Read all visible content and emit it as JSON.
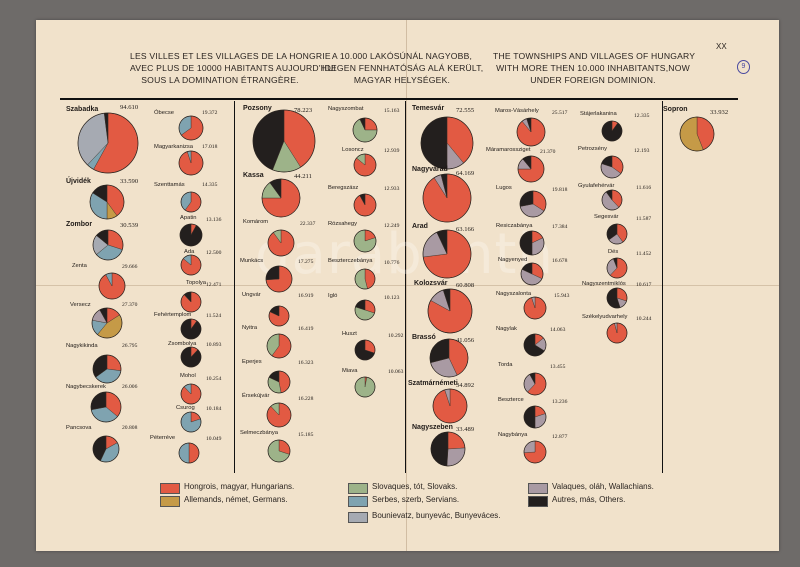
{
  "header": {
    "plate_no": "XX",
    "stamp": "9",
    "french": [
      "LES VILLES ET LES VILLAGES DE LA HONGRIE",
      "AVEC PLUS DE 10000 HABITANTS AUJOURD'HUI",
      "SOUS LA DOMINATION ÉTRANGÈRE."
    ],
    "hungarian": [
      "A 10.000 LAKÓSÚNÁL NAGYOBB,",
      "IDEGEN FENNHATÓSÁG ALÁ KERÜLT,",
      "MAGYAR HELYSÉGEK."
    ],
    "english": [
      "THE TOWNSHIPS AND VILLAGES OF HUNGARY",
      "WITH MORE THEN 10.000 INHABITANTS,NOW",
      "UNDER FOREIGN DOMINION."
    ]
  },
  "watermark": "darabanth",
  "colors": {
    "hun": "#e25a43",
    "ger": "#c59a47",
    "slo": "#9db389",
    "srb": "#7fa3b0",
    "bun": "#a6aab2",
    "val": "#a99aa3",
    "oth": "#231f1e"
  },
  "legend": [
    {
      "key": "hun",
      "label": "Hongrois, magyar, Hungarians."
    },
    {
      "key": "ger",
      "label": "Allemands, német, Germans."
    },
    {
      "key": "slo",
      "label": "Slovaques, tót, Slovaks."
    },
    {
      "key": "srb",
      "label": "Serbes, szerb, Servians."
    },
    {
      "key": "bun",
      "label": "Bounievatz, bunyevác, Bunyevác­es."
    },
    {
      "key": "val",
      "label": "Valaques, oláh, Wallachians."
    },
    {
      "key": "oth",
      "label": "Autres, más, Others."
    }
  ],
  "towns": [
    {
      "name": "Szabadka",
      "pop": "94.610",
      "parts": {
        "hun": 58,
        "bun": 36,
        "srb": 4,
        "oth": 2
      }
    },
    {
      "name": "Újvidék",
      "pop": "33.590",
      "parts": {
        "hun": 40,
        "srb": 34,
        "ger": 10,
        "oth": 16
      }
    },
    {
      "name": "Zombor",
      "pop": "30.539",
      "parts": {
        "hun": 30,
        "srb": 34,
        "bun": 22,
        "oth": 14
      }
    },
    {
      "name": "Zenta",
      "pop": "29.666",
      "parts": {
        "hun": 92,
        "srb": 8
      }
    },
    {
      "name": "Versecz",
      "pop": "27.370",
      "parts": {
        "hun": 16,
        "ger": 45,
        "srb": 17,
        "val": 14,
        "oth": 8
      }
    },
    {
      "name": "Nagykikinda",
      "pop": "26.795",
      "parts": {
        "hun": 27,
        "srb": 38,
        "oth": 35
      }
    },
    {
      "name": "Nagybecskerek",
      "pop": "26.006",
      "parts": {
        "hun": 36,
        "srb": 36,
        "oth": 28
      }
    },
    {
      "name": "Pancsova",
      "pop": "20.808",
      "parts": {
        "hun": 17,
        "srb": 40,
        "oth": 43
      }
    },
    {
      "name": "Óbecse",
      "pop": "19.372",
      "parts": {
        "hun": 65,
        "srb": 35
      }
    },
    {
      "name": "Magyarkanizsa",
      "pop": "17.018",
      "parts": {
        "hun": 95,
        "srb": 5
      }
    },
    {
      "name": "Szenttamás",
      "pop": "14.335",
      "parts": {
        "hun": 60,
        "srb": 40
      }
    },
    {
      "name": "Apatin",
      "pop": "13.136",
      "parts": {
        "hun": 8,
        "oth": 92
      }
    },
    {
      "name": "Ada",
      "pop": "12.500",
      "parts": {
        "hun": 86,
        "srb": 14
      }
    },
    {
      "name": "Topolya",
      "pop": "12.471",
      "parts": {
        "hun": 88,
        "oth": 12
      }
    },
    {
      "name": "Fehértemplom",
      "pop": "11.524",
      "parts": {
        "hun": 10,
        "oth": 90
      }
    },
    {
      "name": "Zsombolya",
      "pop": "10.893",
      "parts": {
        "hun": 12,
        "oth": 88
      }
    },
    {
      "name": "Mohol",
      "pop": "10.254",
      "parts": {
        "hun": 88,
        "srb": 12
      }
    },
    {
      "name": "Csurog",
      "pop": "10.184",
      "parts": {
        "hun": 20,
        "srb": 80
      }
    },
    {
      "name": "Péterréve",
      "pop": "10.049",
      "parts": {
        "hun": 50,
        "srb": 50
      }
    },
    {
      "name": "Pozsony",
      "pop": "78.223",
      "parts": {
        "hun": 41,
        "slo": 15,
        "oth": 44
      }
    },
    {
      "name": "Kassa",
      "pop": "44.211",
      "parts": {
        "hun": 75,
        "slo": 15,
        "oth": 10
      }
    },
    {
      "name": "Komárom",
      "pop": "22.337",
      "parts": {
        "hun": 90,
        "slo": 10
      }
    },
    {
      "name": "Munkács",
      "pop": "17.275",
      "parts": {
        "hun": 74,
        "oth": 26
      }
    },
    {
      "name": "Ungvár",
      "pop": "16.919",
      "parts": {
        "hun": 82,
        "oth": 18
      }
    },
    {
      "name": "Nyitra",
      "pop": "16.419",
      "parts": {
        "hun": 60,
        "slo": 40
      }
    },
    {
      "name": "Eperjes",
      "pop": "16.323",
      "parts": {
        "hun": 47,
        "slo": 35,
        "oth": 18
      }
    },
    {
      "name": "Érsekújvár",
      "pop": "16.228",
      "parts": {
        "hun": 88,
        "slo": 12
      }
    },
    {
      "name": "Selmeczbánya",
      "pop": "15.185",
      "parts": {
        "hun": 30,
        "slo": 70
      }
    },
    {
      "name": "Nagyszombat",
      "pop": "15.163",
      "parts": {
        "hun": 25,
        "slo": 68,
        "oth": 7
      }
    },
    {
      "name": "Losoncz",
      "pop": "12.939",
      "parts": {
        "hun": 86,
        "slo": 14
      }
    },
    {
      "name": "Beregszász",
      "pop": "12.933",
      "parts": {
        "hun": 92,
        "oth": 8
      }
    },
    {
      "name": "Rózsahegy",
      "pop": "12.249",
      "parts": {
        "hun": 20,
        "slo": 80
      }
    },
    {
      "name": "Beszterczebánya",
      "pop": "10.776",
      "parts": {
        "hun": 46,
        "slo": 54
      }
    },
    {
      "name": "Igló",
      "pop": "10.123",
      "parts": {
        "hun": 30,
        "slo": 50,
        "oth": 20
      }
    },
    {
      "name": "Huszt",
      "pop": "10.292",
      "parts": {
        "hun": 30,
        "oth": 70
      }
    },
    {
      "name": "Miava",
      "pop": "10.063",
      "parts": {
        "hun": 3,
        "slo": 97
      }
    },
    {
      "name": "Temesvár",
      "pop": "72.555",
      "parts": {
        "hun": 39,
        "val": 11,
        "oth": 50
      }
    },
    {
      "name": "Nagyvárad",
      "pop": "64.169",
      "parts": {
        "hun": 91,
        "val": 5,
        "oth": 4
      }
    },
    {
      "name": "Arad",
      "pop": "63.166",
      "parts": {
        "hun": 73,
        "val": 20,
        "oth": 7
      }
    },
    {
      "name": "Kolozsvár",
      "pop": "60.808",
      "parts": {
        "hun": 83,
        "val": 12,
        "oth": 5
      }
    },
    {
      "name": "Brassó",
      "pop": "41.056",
      "parts": {
        "hun": 43,
        "val": 28,
        "oth": 29
      }
    },
    {
      "name": "Szatmárnémeti",
      "pop": "34.892",
      "parts": {
        "hun": 95,
        "val": 5
      }
    },
    {
      "name": "Nagyszeben",
      "pop": "33.489",
      "parts": {
        "hun": 24,
        "val": 27,
        "oth": 49
      }
    },
    {
      "name": "Maros-Vásárhely",
      "pop": "25.517",
      "parts": {
        "hun": 89,
        "val": 6,
        "oth": 5
      }
    },
    {
      "name": "Máramarossziget",
      "pop": "21.370",
      "parts": {
        "hun": 75,
        "val": 14,
        "oth": 11
      }
    },
    {
      "name": "Lugos",
      "pop": "19.818",
      "parts": {
        "hun": 34,
        "val": 38,
        "oth": 28
      }
    },
    {
      "name": "Resiczabánya",
      "pop": "17.384",
      "parts": {
        "hun": 18,
        "val": 32,
        "oth": 50
      }
    },
    {
      "name": "Nagyenyed",
      "pop": "16.678",
      "parts": {
        "hun": 32,
        "val": 50,
        "oth": 18
      }
    },
    {
      "name": "Nagyszalonta",
      "pop": "15.943",
      "parts": {
        "hun": 95,
        "val": 5
      }
    },
    {
      "name": "Nagylak",
      "pop": "14.063",
      "parts": {
        "hun": 14,
        "val": 20,
        "oth": 66
      }
    },
    {
      "name": "Torda",
      "pop": "13.455",
      "parts": {
        "hun": 62,
        "val": 30,
        "oth": 8
      }
    },
    {
      "name": "Beszterce",
      "pop": "13.236",
      "parts": {
        "hun": 20,
        "val": 30,
        "oth": 50
      }
    },
    {
      "name": "Nagybánya",
      "pop": "12.877",
      "parts": {
        "hun": 74,
        "val": 26
      }
    },
    {
      "name": "Stájerlakanina",
      "pop": "12.335",
      "parts": {
        "hun": 10,
        "oth": 90
      }
    },
    {
      "name": "Petrozsény",
      "pop": "12.193",
      "parts": {
        "hun": 35,
        "val": 45,
        "oth": 20
      }
    },
    {
      "name": "Gyulafehérvár",
      "pop": "11.616",
      "parts": {
        "hun": 38,
        "val": 52,
        "oth": 10
      }
    },
    {
      "name": "Segesvár",
      "pop": "11.587",
      "parts": {
        "hun": 40,
        "val": 25,
        "oth": 35
      }
    },
    {
      "name": "Dés",
      "pop": "11.452",
      "parts": {
        "hun": 62,
        "val": 32,
        "oth": 6
      }
    },
    {
      "name": "Nagyszentmiklós",
      "pop": "10.617",
      "parts": {
        "hun": 30,
        "val": 15,
        "oth": 55
      }
    },
    {
      "name": "Székelyudvarhely",
      "pop": "10.244",
      "parts": {
        "hun": 96,
        "val": 4
      }
    },
    {
      "name": "Sopron",
      "pop": "33.932",
      "parts": {
        "hun": 44,
        "ger": 56
      }
    }
  ]
}
